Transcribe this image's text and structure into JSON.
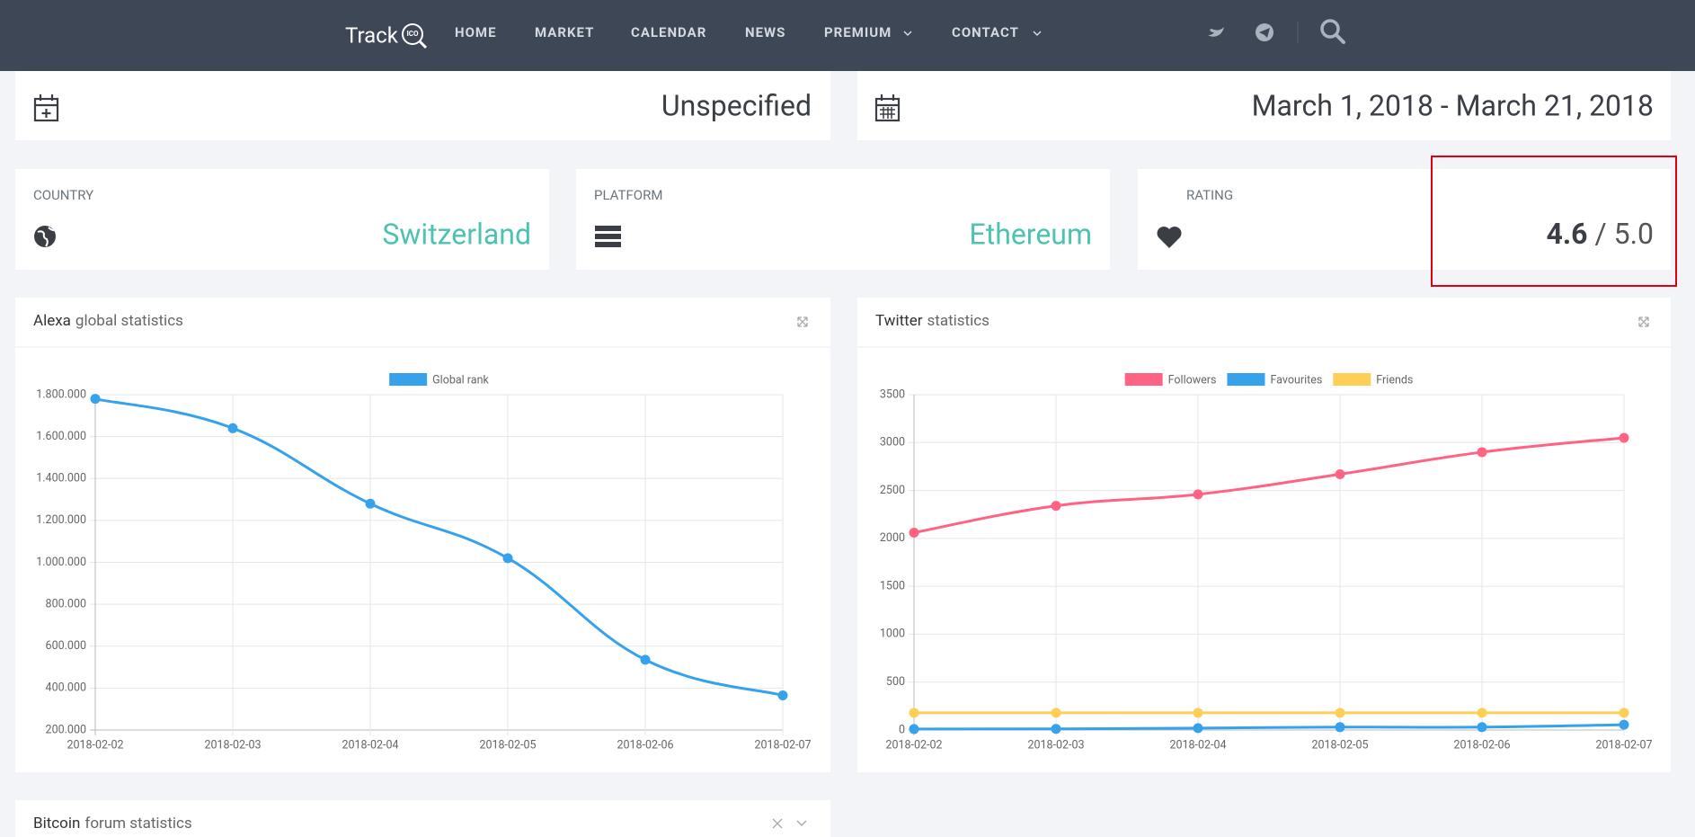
{
  "nav": {
    "logo": "Track",
    "logo_badge": "ICO",
    "items": [
      "HOME",
      "MARKET",
      "CALENDAR",
      "NEWS",
      "PREMIUM",
      "CONTACT"
    ]
  },
  "sale_cards": [
    "Unspecified",
    "March 1, 2018 - March 21, 2018"
  ],
  "stats": [
    {
      "label": "COUNTRY",
      "value": "Switzerland"
    },
    {
      "label": "PLATFORM",
      "value": "Ethereum"
    }
  ],
  "rating": {
    "label": "RATING",
    "value": "4.6",
    "max": "/ 5.0"
  },
  "chart_data": [
    {
      "type": "line",
      "title_strong": "Alexa",
      "title_rest": "global statistics",
      "x": [
        "2018-02-02",
        "2018-02-03",
        "2018-02-04",
        "2018-02-05",
        "2018-02-06",
        "2018-02-07"
      ],
      "series": [
        {
          "name": "Global rank",
          "color": "#36a2eb",
          "values": [
            1780000,
            1640000,
            1280000,
            1020000,
            535000,
            365000
          ]
        }
      ],
      "ylim": [
        200000,
        1800000
      ],
      "yticks": [
        {
          "value": 200000,
          "label": "200.000"
        },
        {
          "value": 400000,
          "label": "400.000"
        },
        {
          "value": 600000,
          "label": "600.000"
        },
        {
          "value": 800000,
          "label": "800.000"
        },
        {
          "value": 1000000,
          "label": "1.000.000"
        },
        {
          "value": 1200000,
          "label": "1.200.000"
        },
        {
          "value": 1400000,
          "label": "1.400.000"
        },
        {
          "value": 1600000,
          "label": "1.600.000"
        },
        {
          "value": 1800000,
          "label": "1.800.000"
        }
      ],
      "grid": true
    },
    {
      "type": "line",
      "title_strong": "Twitter",
      "title_rest": "statistics",
      "x": [
        "2018-02-02",
        "2018-02-03",
        "2018-02-04",
        "2018-02-05",
        "2018-02-06",
        "2018-02-07"
      ],
      "series": [
        {
          "name": "Followers",
          "color": "#ff6384",
          "values": [
            2060,
            2340,
            2460,
            2670,
            2900,
            3050
          ]
        },
        {
          "name": "Favourites",
          "color": "#36a2eb",
          "values": [
            10,
            12,
            20,
            30,
            30,
            55
          ]
        },
        {
          "name": "Friends",
          "color": "#ffce56",
          "values": [
            180,
            180,
            180,
            180,
            180,
            180
          ]
        }
      ],
      "ylim": [
        0,
        3500
      ],
      "yticks": [
        0,
        500,
        1000,
        1500,
        2000,
        2500,
        3000,
        3500
      ],
      "grid": true
    }
  ],
  "forum": {
    "title_strong": "Bitcoin",
    "title_rest": "forum statistics"
  }
}
